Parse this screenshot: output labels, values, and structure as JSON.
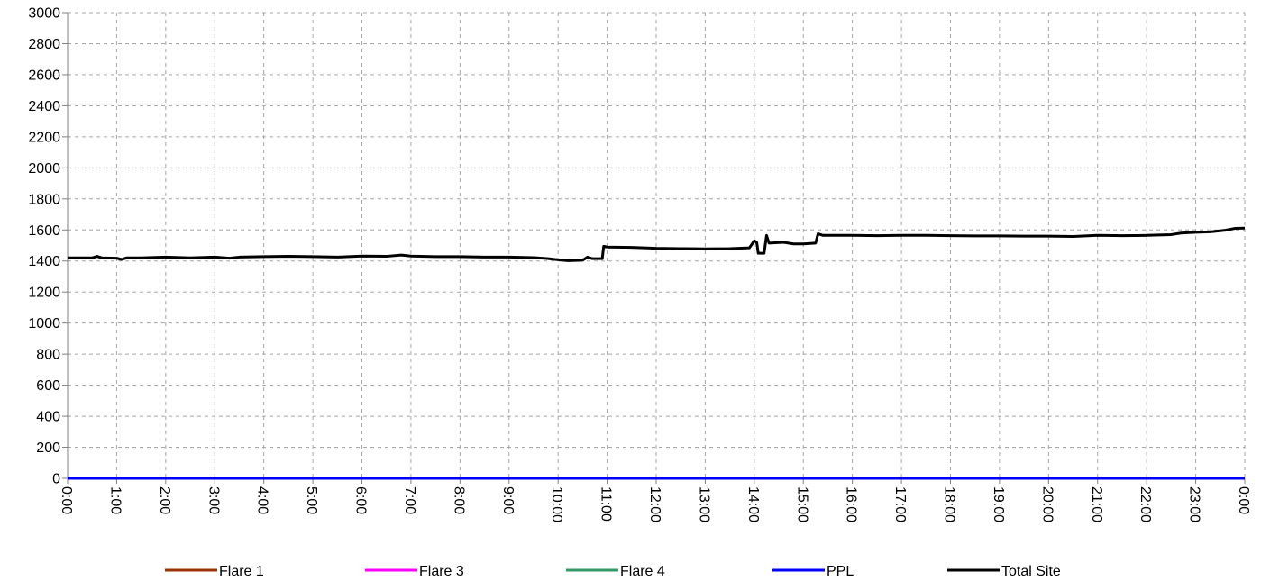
{
  "chart_data": {
    "type": "line",
    "title": "",
    "xlabel": "",
    "ylabel": "",
    "ylim": [
      0,
      3000
    ],
    "xlim": [
      0,
      24
    ],
    "yticks": [
      "0",
      "200",
      "400",
      "600",
      "800",
      "1000",
      "1200",
      "1400",
      "1600",
      "1800",
      "2000",
      "2200",
      "2400",
      "2600",
      "2800",
      "3000"
    ],
    "xticks": [
      "0:00",
      "1:00",
      "2:00",
      "3:00",
      "4:00",
      "5:00",
      "6:00",
      "7:00",
      "8:00",
      "9:00",
      "10:00",
      "11:00",
      "12:00",
      "13:00",
      "14:00",
      "15:00",
      "16:00",
      "17:00",
      "18:00",
      "19:00",
      "20:00",
      "21:00",
      "22:00",
      "23:00",
      "0:00"
    ],
    "grid": true,
    "legend_position": "bottom",
    "series": [
      {
        "name": "Flare 1",
        "color": "#993300",
        "points": [
          [
            0,
            0
          ],
          [
            24,
            0
          ]
        ]
      },
      {
        "name": "Flare 3",
        "color": "#ff00ff",
        "points": [
          [
            0,
            0
          ],
          [
            24,
            0
          ]
        ]
      },
      {
        "name": "Flare 4",
        "color": "#339966",
        "points": [
          [
            0,
            0
          ],
          [
            24,
            0
          ]
        ]
      },
      {
        "name": "PPL",
        "color": "#0000ff",
        "points": [
          [
            0,
            0
          ],
          [
            24,
            0
          ]
        ]
      },
      {
        "name": "Total Site",
        "color": "#000000",
        "points": [
          [
            0,
            1420
          ],
          [
            0.5,
            1420
          ],
          [
            0.6,
            1430
          ],
          [
            0.7,
            1420
          ],
          [
            1.0,
            1418
          ],
          [
            1.1,
            1410
          ],
          [
            1.2,
            1420
          ],
          [
            1.5,
            1420
          ],
          [
            2.0,
            1425
          ],
          [
            2.5,
            1420
          ],
          [
            3.0,
            1425
          ],
          [
            3.3,
            1418
          ],
          [
            3.5,
            1425
          ],
          [
            4.0,
            1428
          ],
          [
            4.5,
            1430
          ],
          [
            5.0,
            1428
          ],
          [
            5.5,
            1425
          ],
          [
            6.0,
            1432
          ],
          [
            6.5,
            1430
          ],
          [
            6.8,
            1438
          ],
          [
            7.0,
            1432
          ],
          [
            7.5,
            1428
          ],
          [
            8.0,
            1428
          ],
          [
            8.5,
            1425
          ],
          [
            9.0,
            1425
          ],
          [
            9.5,
            1422
          ],
          [
            9.8,
            1415
          ],
          [
            10.0,
            1408
          ],
          [
            10.2,
            1402
          ],
          [
            10.5,
            1405
          ],
          [
            10.6,
            1425
          ],
          [
            10.7,
            1415
          ],
          [
            10.9,
            1415
          ],
          [
            10.93,
            1495
          ],
          [
            11.0,
            1490
          ],
          [
            11.5,
            1488
          ],
          [
            12.0,
            1482
          ],
          [
            12.5,
            1480
          ],
          [
            13.0,
            1478
          ],
          [
            13.5,
            1480
          ],
          [
            13.9,
            1485
          ],
          [
            14.0,
            1530
          ],
          [
            14.05,
            1520
          ],
          [
            14.08,
            1450
          ],
          [
            14.2,
            1450
          ],
          [
            14.25,
            1565
          ],
          [
            14.3,
            1515
          ],
          [
            14.6,
            1520
          ],
          [
            14.8,
            1510
          ],
          [
            15.0,
            1510
          ],
          [
            15.25,
            1515
          ],
          [
            15.3,
            1575
          ],
          [
            15.4,
            1565
          ],
          [
            16.0,
            1565
          ],
          [
            16.5,
            1563
          ],
          [
            17.0,
            1565
          ],
          [
            17.5,
            1565
          ],
          [
            18.0,
            1563
          ],
          [
            18.5,
            1562
          ],
          [
            19.0,
            1562
          ],
          [
            19.5,
            1560
          ],
          [
            20.0,
            1560
          ],
          [
            20.5,
            1558
          ],
          [
            21.0,
            1565
          ],
          [
            21.5,
            1563
          ],
          [
            22.0,
            1565
          ],
          [
            22.5,
            1570
          ],
          [
            22.7,
            1580
          ],
          [
            23.0,
            1585
          ],
          [
            23.3,
            1588
          ],
          [
            23.6,
            1598
          ],
          [
            23.8,
            1610
          ],
          [
            24.0,
            1612
          ]
        ]
      }
    ]
  }
}
